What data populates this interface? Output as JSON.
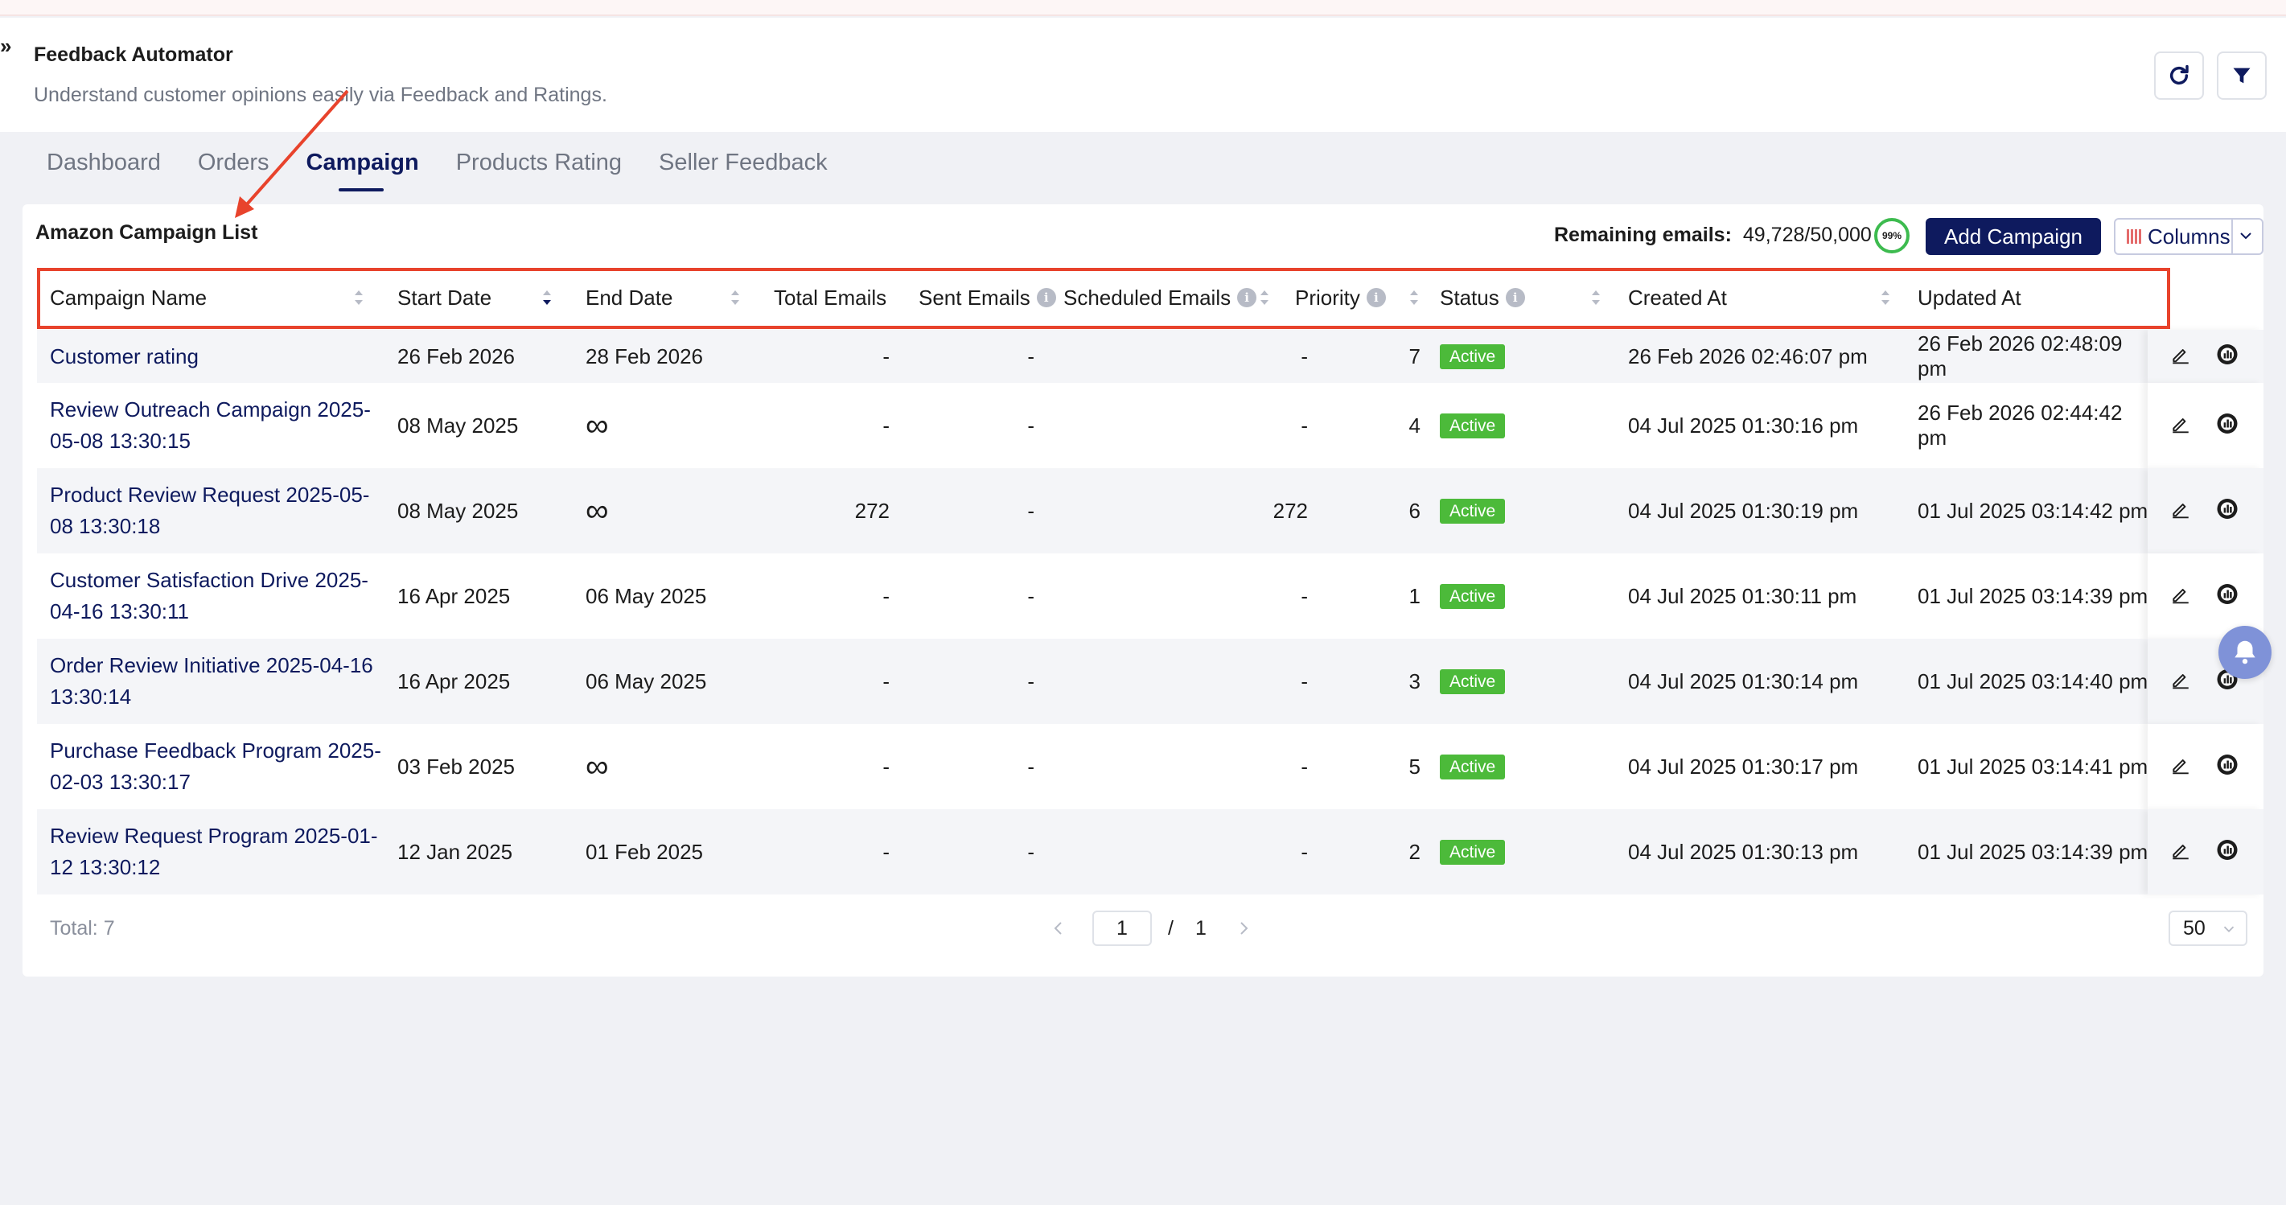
{
  "app": {
    "collapse_glyph": "»",
    "title": "Feedback Automator",
    "subtitle": "Understand customer opinions easily via Feedback and Ratings."
  },
  "tabs": [
    {
      "label": "Dashboard",
      "active": false
    },
    {
      "label": "Orders",
      "active": false
    },
    {
      "label": "Campaign",
      "active": true
    },
    {
      "label": "Products Rating",
      "active": false
    },
    {
      "label": "Seller Feedback",
      "active": false
    }
  ],
  "list": {
    "title": "Amazon Campaign List",
    "remaining_label": "Remaining emails:",
    "remaining_value": "49,728/50,000",
    "remaining_percent": "99%",
    "add_button": "Add Campaign",
    "columns_button": "Columns"
  },
  "columns": [
    "Campaign Name",
    "Start Date",
    "End Date",
    "Total Emails",
    "Sent Emails",
    "Scheduled Emails",
    "Priority",
    "Status",
    "Created At",
    "Updated At"
  ],
  "rows": [
    {
      "name": "Customer rating",
      "start": "26 Feb 2026",
      "end": "28 Feb 2026",
      "total": "-",
      "sent": "-",
      "scheduled": "-",
      "priority": "7",
      "status": "Active",
      "created": "26 Feb 2026 02:46:07 pm",
      "updated": "26 Feb 2026 02:48:09 pm"
    },
    {
      "name": "Review Outreach Campaign 2025-05-08 13:30:15",
      "start": "08 May 2025",
      "end": "∞",
      "total": "-",
      "sent": "-",
      "scheduled": "-",
      "priority": "4",
      "status": "Active",
      "created": "04 Jul 2025 01:30:16 pm",
      "updated": "26 Feb 2026 02:44:42 pm"
    },
    {
      "name": "Product Review Request 2025-05-08 13:30:18",
      "start": "08 May 2025",
      "end": "∞",
      "total": "272",
      "sent": "-",
      "scheduled": "272",
      "priority": "6",
      "status": "Active",
      "created": "04 Jul 2025 01:30:19 pm",
      "updated": "01 Jul 2025 03:14:42 pm"
    },
    {
      "name": "Customer Satisfaction Drive 2025-04-16 13:30:11",
      "start": "16 Apr 2025",
      "end": "06 May 2025",
      "total": "-",
      "sent": "-",
      "scheduled": "-",
      "priority": "1",
      "status": "Active",
      "created": "04 Jul 2025 01:30:11 pm",
      "updated": "01 Jul 2025 03:14:39 pm"
    },
    {
      "name": "Order Review Initiative 2025-04-16 13:30:14",
      "start": "16 Apr 2025",
      "end": "06 May 2025",
      "total": "-",
      "sent": "-",
      "scheduled": "-",
      "priority": "3",
      "status": "Active",
      "created": "04 Jul 2025 01:30:14 pm",
      "updated": "01 Jul 2025 03:14:40 pm"
    },
    {
      "name": "Purchase Feedback Program 2025-02-03 13:30:17",
      "start": "03 Feb 2025",
      "end": "∞",
      "total": "-",
      "sent": "-",
      "scheduled": "-",
      "priority": "5",
      "status": "Active",
      "created": "04 Jul 2025 01:30:17 pm",
      "updated": "01 Jul 2025 03:14:41 pm"
    },
    {
      "name": "Review Request Program 2025-01-12 13:30:12",
      "start": "12 Jan 2025",
      "end": "01 Feb 2025",
      "total": "-",
      "sent": "-",
      "scheduled": "-",
      "priority": "2",
      "status": "Active",
      "created": "04 Jul 2025 01:30:13 pm",
      "updated": "01 Jul 2025 03:14:39 pm"
    }
  ],
  "footer": {
    "total": "Total: 7",
    "page_current": "1",
    "page_separator": "/",
    "page_total": "1",
    "page_size": "50"
  },
  "colors": {
    "brand": "#0e1a5e",
    "active_badge": "#4cba3a",
    "annotation": "#e8432c"
  },
  "icons": [
    "refresh-icon",
    "filter-icon",
    "edit-icon",
    "analytics-icon",
    "bell-icon",
    "columns-icon",
    "chevron-down-icon",
    "chevron-left-icon",
    "chevron-right-icon",
    "sort-icon",
    "info-icon"
  ]
}
